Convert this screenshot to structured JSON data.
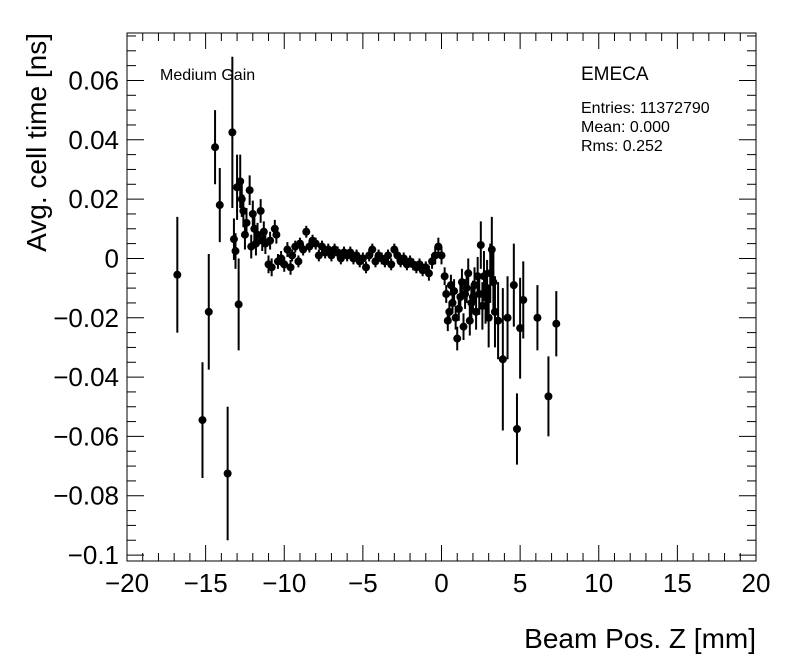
{
  "chart_data": {
    "type": "scatter",
    "xlabel": "Beam Pos. Z [mm]",
    "ylabel": "Avg. cell time [ns]",
    "xlim": [
      -20,
      20
    ],
    "ylim": [
      -0.102,
      0.076
    ],
    "xticks": [
      -20,
      -15,
      -10,
      -5,
      0,
      5,
      10,
      15,
      20
    ],
    "xtick_labels": [
      "−20",
      "−15",
      "−10",
      "−5",
      "0",
      "5",
      "10",
      "15",
      "20"
    ],
    "yticks": [
      -0.1,
      -0.08,
      -0.06,
      -0.04,
      -0.02,
      0,
      0.02,
      0.04,
      0.06
    ],
    "ytick_labels": [
      "−0.1",
      "−0.08",
      "−0.06",
      "−0.04",
      "−0.02",
      "0",
      "0.02",
      "0.04",
      "0.06"
    ],
    "grid": false,
    "annotations": {
      "gain_label": "Medium Gain",
      "detector_label": "EMECA",
      "entries": "Entries: 11372790",
      "mean": "Mean: 0.000",
      "rms": "Rms: 0.252"
    },
    "series": [
      {
        "marker_color": "#000000",
        "points": [
          {
            "x": -16.8,
            "y": -0.0055,
            "err": 0.0195
          },
          {
            "x": -15.2,
            "y": -0.0545,
            "err": 0.0195
          },
          {
            "x": -14.8,
            "y": -0.018,
            "err": 0.0195
          },
          {
            "x": -14.4,
            "y": 0.0375,
            "err": 0.0125
          },
          {
            "x": -14.1,
            "y": 0.018,
            "err": 0.0125
          },
          {
            "x": -13.6,
            "y": -0.0725,
            "err": 0.0225
          },
          {
            "x": -13.3,
            "y": 0.0425,
            "err": 0.0255
          },
          {
            "x": -13.2,
            "y": 0.0065,
            "err": 0.007
          },
          {
            "x": -13.1,
            "y": 0.0025,
            "err": 0.006
          },
          {
            "x": -13.0,
            "y": 0.024,
            "err": 0.011
          },
          {
            "x": -12.9,
            "y": -0.0155,
            "err": 0.0155
          },
          {
            "x": -12.8,
            "y": 0.026,
            "err": 0.009
          },
          {
            "x": -12.7,
            "y": 0.02,
            "err": 0.006
          },
          {
            "x": -12.6,
            "y": 0.016,
            "err": 0.0055
          },
          {
            "x": -12.5,
            "y": 0.008,
            "err": 0.005
          },
          {
            "x": -12.4,
            "y": 0.012,
            "err": 0.005
          },
          {
            "x": -12.2,
            "y": 0.023,
            "err": 0.005
          },
          {
            "x": -12.1,
            "y": 0.004,
            "err": 0.004
          },
          {
            "x": -12.0,
            "y": 0.015,
            "err": 0.0045
          },
          {
            "x": -11.9,
            "y": 0.01,
            "err": 0.004
          },
          {
            "x": -11.8,
            "y": 0.005,
            "err": 0.004
          },
          {
            "x": -11.7,
            "y": 0.008,
            "err": 0.004
          },
          {
            "x": -11.5,
            "y": 0.016,
            "err": 0.004
          },
          {
            "x": -11.4,
            "y": 0.006,
            "err": 0.0035
          },
          {
            "x": -11.3,
            "y": 0.009,
            "err": 0.0035
          },
          {
            "x": -11.2,
            "y": 0.005,
            "err": 0.0035
          },
          {
            "x": -11.0,
            "y": -0.002,
            "err": 0.003
          },
          {
            "x": -10.9,
            "y": 0.006,
            "err": 0.003
          },
          {
            "x": -10.8,
            "y": -0.003,
            "err": 0.003
          },
          {
            "x": -10.6,
            "y": 0.01,
            "err": 0.003
          },
          {
            "x": -10.5,
            "y": 0.008,
            "err": 0.003
          },
          {
            "x": -10.4,
            "y": -0.001,
            "err": 0.0025
          },
          {
            "x": -10.2,
            "y": 0.0,
            "err": 0.0025
          },
          {
            "x": -10.0,
            "y": -0.002,
            "err": 0.0025
          },
          {
            "x": -9.8,
            "y": 0.003,
            "err": 0.0025
          },
          {
            "x": -9.6,
            "y": -0.003,
            "err": 0.0025
          },
          {
            "x": -9.5,
            "y": 0.001,
            "err": 0.002
          },
          {
            "x": -9.3,
            "y": 0.004,
            "err": 0.002
          },
          {
            "x": -9.1,
            "y": -0.001,
            "err": 0.002
          },
          {
            "x": -9.0,
            "y": 0.005,
            "err": 0.002
          },
          {
            "x": -8.8,
            "y": 0.003,
            "err": 0.002
          },
          {
            "x": -8.6,
            "y": 0.009,
            "err": 0.002
          },
          {
            "x": -8.4,
            "y": 0.004,
            "err": 0.002
          },
          {
            "x": -8.2,
            "y": 0.006,
            "err": 0.002
          },
          {
            "x": -8.0,
            "y": 0.005,
            "err": 0.002
          },
          {
            "x": -7.8,
            "y": 0.001,
            "err": 0.002
          },
          {
            "x": -7.6,
            "y": 0.004,
            "err": 0.002
          },
          {
            "x": -7.4,
            "y": 0.002,
            "err": 0.002
          },
          {
            "x": -7.2,
            "y": 0.003,
            "err": 0.002
          },
          {
            "x": -7.0,
            "y": 0.001,
            "err": 0.002
          },
          {
            "x": -6.8,
            "y": 0.003,
            "err": 0.002
          },
          {
            "x": -6.6,
            "y": 0.002,
            "err": 0.002
          },
          {
            "x": -6.4,
            "y": 0.0,
            "err": 0.002
          },
          {
            "x": -6.2,
            "y": 0.002,
            "err": 0.002
          },
          {
            "x": -6.0,
            "y": 0.001,
            "err": 0.002
          },
          {
            "x": -5.8,
            "y": 0.002,
            "err": 0.002
          },
          {
            "x": -5.6,
            "y": 0.0,
            "err": 0.002
          },
          {
            "x": -5.4,
            "y": 0.001,
            "err": 0.002
          },
          {
            "x": -5.2,
            "y": -0.001,
            "err": 0.002
          },
          {
            "x": -5.0,
            "y": 0.0,
            "err": 0.002
          },
          {
            "x": -4.8,
            "y": -0.003,
            "err": 0.002
          },
          {
            "x": -4.6,
            "y": 0.001,
            "err": 0.002
          },
          {
            "x": -4.4,
            "y": 0.003,
            "err": 0.002
          },
          {
            "x": -4.2,
            "y": -0.001,
            "err": 0.002
          },
          {
            "x": -4.0,
            "y": 0.001,
            "err": 0.002
          },
          {
            "x": -3.8,
            "y": 0.0,
            "err": 0.002
          },
          {
            "x": -3.6,
            "y": -0.001,
            "err": 0.002
          },
          {
            "x": -3.4,
            "y": 0.001,
            "err": 0.002
          },
          {
            "x": -3.2,
            "y": -0.002,
            "err": 0.002
          },
          {
            "x": -3.0,
            "y": 0.003,
            "err": 0.002
          },
          {
            "x": -2.8,
            "y": 0.001,
            "err": 0.002
          },
          {
            "x": -2.6,
            "y": -0.001,
            "err": 0.002
          },
          {
            "x": -2.4,
            "y": 0.0,
            "err": 0.002
          },
          {
            "x": -2.2,
            "y": -0.002,
            "err": 0.002
          },
          {
            "x": -2.0,
            "y": -0.001,
            "err": 0.002
          },
          {
            "x": -1.8,
            "y": -0.002,
            "err": 0.002
          },
          {
            "x": -1.6,
            "y": -0.003,
            "err": 0.002
          },
          {
            "x": -1.4,
            "y": -0.002,
            "err": 0.002
          },
          {
            "x": -1.2,
            "y": -0.004,
            "err": 0.002
          },
          {
            "x": -1.0,
            "y": -0.003,
            "err": 0.002
          },
          {
            "x": -0.8,
            "y": -0.005,
            "err": 0.0025
          },
          {
            "x": -0.6,
            "y": -0.001,
            "err": 0.0025
          },
          {
            "x": -0.4,
            "y": 0.001,
            "err": 0.003
          },
          {
            "x": -0.2,
            "y": 0.004,
            "err": 0.003
          },
          {
            "x": 0.0,
            "y": 0.001,
            "err": 0.003
          },
          {
            "x": 0.2,
            "y": -0.006,
            "err": 0.003
          },
          {
            "x": 0.3,
            "y": -0.012,
            "err": 0.003
          },
          {
            "x": 0.4,
            "y": -0.021,
            "err": 0.0035
          },
          {
            "x": 0.5,
            "y": -0.018,
            "err": 0.0035
          },
          {
            "x": 0.6,
            "y": -0.009,
            "err": 0.0035
          },
          {
            "x": 0.7,
            "y": -0.015,
            "err": 0.0035
          },
          {
            "x": 0.8,
            "y": -0.011,
            "err": 0.004
          },
          {
            "x": 0.9,
            "y": -0.02,
            "err": 0.004
          },
          {
            "x": 1.0,
            "y": -0.027,
            "err": 0.004
          },
          {
            "x": 1.1,
            "y": -0.017,
            "err": 0.004
          },
          {
            "x": 1.2,
            "y": -0.013,
            "err": 0.0045
          },
          {
            "x": 1.3,
            "y": -0.008,
            "err": 0.0045
          },
          {
            "x": 1.4,
            "y": -0.023,
            "err": 0.0045
          },
          {
            "x": 1.5,
            "y": -0.012,
            "err": 0.005
          },
          {
            "x": 1.6,
            "y": -0.01,
            "err": 0.005
          },
          {
            "x": 1.7,
            "y": -0.005,
            "err": 0.005
          },
          {
            "x": 1.8,
            "y": -0.021,
            "err": 0.005
          },
          {
            "x": 1.9,
            "y": -0.015,
            "err": 0.0055
          },
          {
            "x": 2.0,
            "y": -0.013,
            "err": 0.0055
          },
          {
            "x": 2.1,
            "y": -0.009,
            "err": 0.006
          },
          {
            "x": 2.2,
            "y": -0.018,
            "err": 0.006
          },
          {
            "x": 2.3,
            "y": -0.006,
            "err": 0.0065
          },
          {
            "x": 2.4,
            "y": -0.012,
            "err": 0.007
          },
          {
            "x": 2.5,
            "y": 0.0045,
            "err": 0.008
          },
          {
            "x": 2.6,
            "y": -0.016,
            "err": 0.008
          },
          {
            "x": 2.7,
            "y": -0.006,
            "err": 0.0085
          },
          {
            "x": 2.8,
            "y": -0.013,
            "err": 0.009
          },
          {
            "x": 2.9,
            "y": -0.01,
            "err": 0.0095
          },
          {
            "x": 3.0,
            "y": -0.02,
            "err": 0.01
          },
          {
            "x": 3.1,
            "y": -0.005,
            "err": 0.01
          },
          {
            "x": 3.2,
            "y": 0.003,
            "err": 0.011
          },
          {
            "x": 3.3,
            "y": -0.008,
            "err": 0.011
          },
          {
            "x": 3.4,
            "y": -0.018,
            "err": 0.012
          },
          {
            "x": 3.6,
            "y": -0.021,
            "err": 0.013
          },
          {
            "x": 3.9,
            "y": -0.034,
            "err": 0.024
          },
          {
            "x": 4.2,
            "y": -0.02,
            "err": 0.014
          },
          {
            "x": 4.6,
            "y": -0.009,
            "err": 0.014
          },
          {
            "x": 4.8,
            "y": -0.0575,
            "err": 0.012
          },
          {
            "x": 5.0,
            "y": -0.0235,
            "err": 0.017
          },
          {
            "x": 5.2,
            "y": -0.014,
            "err": 0.013
          },
          {
            "x": 6.1,
            "y": -0.02,
            "err": 0.011
          },
          {
            "x": 6.8,
            "y": -0.0465,
            "err": 0.0135
          },
          {
            "x": 7.3,
            "y": -0.022,
            "err": 0.011
          }
        ]
      }
    ]
  }
}
